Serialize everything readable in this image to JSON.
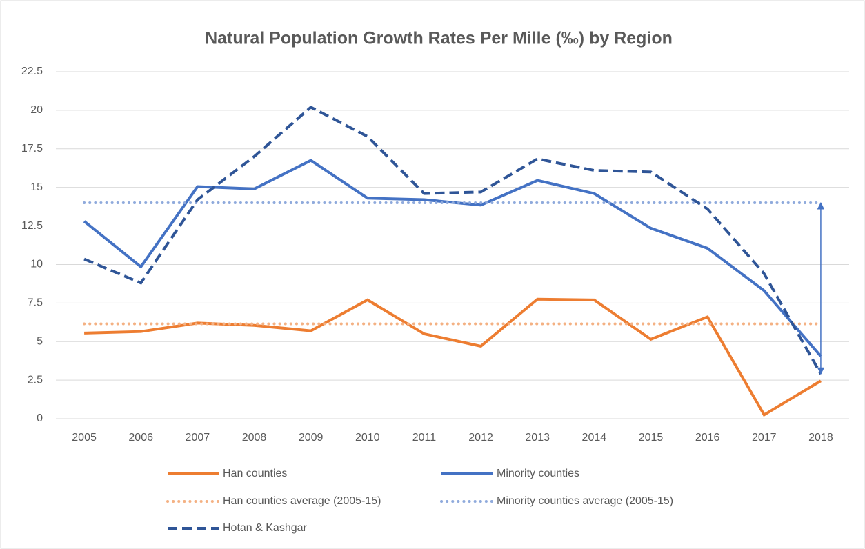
{
  "chart_data": {
    "type": "line",
    "title": "Natural Population Growth Rates Per Mille (‰) by Region",
    "categories": [
      "2005",
      "2006",
      "2007",
      "2008",
      "2009",
      "2010",
      "2011",
      "2012",
      "2013",
      "2014",
      "2015",
      "2016",
      "2017",
      "2018"
    ],
    "ylim": [
      0,
      22.5
    ],
    "yticks": [
      0,
      2.5,
      5,
      7.5,
      10,
      12.5,
      15,
      17.5,
      20,
      22.5
    ],
    "grid": true,
    "legend": "bottom",
    "series": [
      {
        "name": "Han counties",
        "color": "#ed7d31",
        "dash": "solid",
        "values": [
          5.55,
          5.65,
          6.2,
          6.05,
          5.7,
          7.7,
          5.5,
          4.7,
          7.75,
          7.7,
          5.15,
          6.6,
          0.25,
          2.45
        ]
      },
      {
        "name": "Minority counties",
        "color": "#4472c4",
        "dash": "solid",
        "values": [
          12.8,
          9.85,
          15.05,
          14.9,
          16.75,
          14.3,
          14.2,
          13.85,
          15.45,
          14.6,
          12.35,
          11.05,
          8.3,
          4.05
        ]
      },
      {
        "name": "Han counties average (2005-15)",
        "color": "#f4b183",
        "dash": "dotted",
        "values": [
          6.15,
          6.15,
          6.15,
          6.15,
          6.15,
          6.15,
          6.15,
          6.15,
          6.15,
          6.15,
          6.15,
          6.15,
          6.15,
          6.15
        ]
      },
      {
        "name": "Minority counties average (2005-15)",
        "color": "#8faadc",
        "dash": "dotted",
        "values": [
          14,
          14,
          14,
          14,
          14,
          14,
          14,
          14,
          14,
          14,
          14,
          14,
          14,
          14
        ]
      },
      {
        "name": "Hotan & Kashgar",
        "color": "#2f5597",
        "dash": "dashed",
        "values": [
          10.35,
          8.8,
          14.2,
          17.0,
          20.2,
          18.3,
          14.6,
          14.7,
          16.85,
          16.1,
          16.0,
          13.6,
          9.4,
          2.9
        ]
      }
    ]
  }
}
